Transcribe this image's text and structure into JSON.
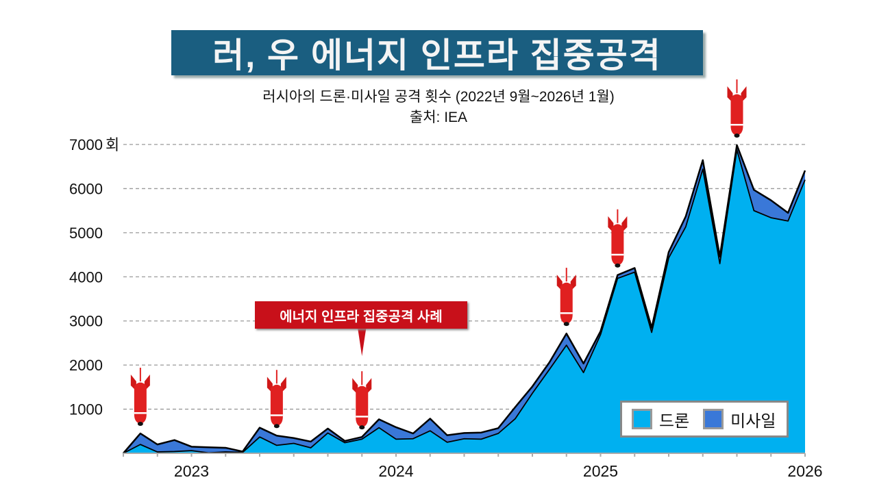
{
  "title": "러, 우 에너지 인프라 집중공격",
  "subtitle": "러시아의 드론·미사일 공격 횟수 (2022년 9월~2026년 1월)",
  "source": "출처: IEA",
  "callout": "에너지 인프라 집중공격 사례",
  "colors": {
    "drone": "#00b0f0",
    "missile": "#3a78d8",
    "title_bg": "#1a5e80",
    "callout_bg": "#c8101a",
    "rocket": "#e02020"
  },
  "chart_data": {
    "type": "area",
    "stacked": true,
    "title": "러시아의 드론·미사일 공격 횟수 (2022년 9월~2026년 1월)",
    "x": [
      "2022-09",
      "2022-10",
      "2022-11",
      "2022-12",
      "2023-01",
      "2023-02",
      "2023-03",
      "2023-04",
      "2023-05",
      "2023-06",
      "2023-07",
      "2023-08",
      "2023-09",
      "2023-10",
      "2023-11",
      "2023-12",
      "2024-01",
      "2024-02",
      "2024-03",
      "2024-04",
      "2024-05",
      "2024-06",
      "2024-07",
      "2024-08",
      "2024-09",
      "2024-10",
      "2024-11",
      "2024-12",
      "2025-01",
      "2025-02",
      "2025-03",
      "2025-04",
      "2025-05",
      "2025-06",
      "2025-07",
      "2025-08",
      "2025-09",
      "2025-10",
      "2025-11",
      "2025-12",
      "2026-01"
    ],
    "series": [
      {
        "name": "드론",
        "values": [
          0,
          200,
          30,
          40,
          60,
          10,
          30,
          20,
          370,
          180,
          225,
          125,
          460,
          240,
          320,
          580,
          320,
          330,
          510,
          250,
          330,
          320,
          450,
          785,
          1360,
          1900,
          2450,
          1830,
          2690,
          3965,
          4105,
          2740,
          4430,
          5135,
          6440,
          4300,
          6880,
          5500,
          5340,
          5265,
          6200
        ]
      },
      {
        "name": "미사일",
        "values": [
          0,
          250,
          170,
          260,
          90,
          125,
          95,
          20,
          210,
          220,
          120,
          140,
          100,
          40,
          50,
          190,
          270,
          120,
          275,
          160,
          130,
          150,
          120,
          265,
          155,
          160,
          265,
          205,
          75,
          75,
          95,
          105,
          130,
          235,
          205,
          160,
          105,
          470,
          395,
          185,
          210
        ]
      }
    ],
    "ylim": [
      0,
      7000
    ],
    "yticks": [
      "1000",
      "2000",
      "3000",
      "4000",
      "5000",
      "6000",
      "7000"
    ],
    "yunit": "회",
    "xticks": [
      {
        "label": "2023",
        "at": "2023-01"
      },
      {
        "label": "2024",
        "at": "2024-01"
      },
      {
        "label": "2025",
        "at": "2025-01"
      },
      {
        "label": "2026",
        "at": "2026-01"
      }
    ],
    "grid": "horizontal-dashed",
    "legend": "bottom-right",
    "markers": [
      "2022-10",
      "2023-06",
      "2023-11",
      "2024-11",
      "2025-02",
      "2025-09"
    ],
    "callout_at": "2023-11"
  }
}
